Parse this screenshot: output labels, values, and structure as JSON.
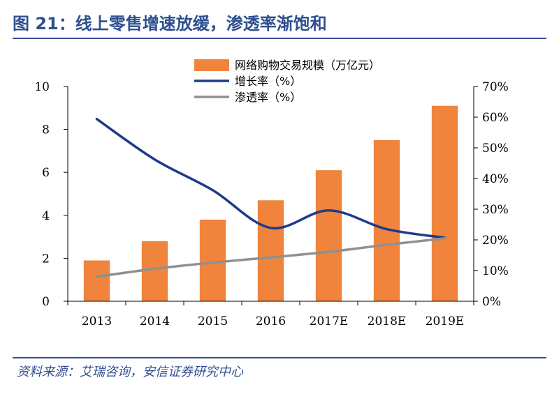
{
  "header": {
    "title": "图 21：线上零售增速放缓，渗透率渐饱和"
  },
  "footer": {
    "source": "资料来源：艾瑞咨询，安信证券研究中心"
  },
  "chart_data": {
    "type": "bar+line",
    "categories": [
      "2013",
      "2014",
      "2015",
      "2016",
      "2017E",
      "2018E",
      "2019E"
    ],
    "series": [
      {
        "name": "网络购物交易规模（万亿元）",
        "type": "bar",
        "axis": "left",
        "values": [
          1.9,
          2.8,
          3.8,
          4.7,
          6.1,
          7.5,
          9.1
        ],
        "color": "#f0843c"
      },
      {
        "name": "增长率（%）",
        "type": "line",
        "axis": "right",
        "values": [
          59.4,
          46.2,
          36.2,
          23.9,
          29.6,
          23.5,
          20.7
        ],
        "color": "#1f3a8a"
      },
      {
        "name": "渗透率（%）",
        "type": "line",
        "axis": "right",
        "values": [
          8.0,
          10.6,
          12.6,
          14.3,
          16.1,
          18.4,
          20.5
        ],
        "color": "#909090"
      }
    ],
    "y_left": {
      "min": 0,
      "max": 10,
      "ticks": [
        "0",
        "2",
        "4",
        "6",
        "8",
        "10"
      ]
    },
    "y_right": {
      "min": 0,
      "max": 70,
      "ticks": [
        "0%",
        "10%",
        "20%",
        "30%",
        "40%",
        "50%",
        "60%",
        "70%"
      ]
    },
    "grid": false,
    "legend_position": "top-center"
  }
}
